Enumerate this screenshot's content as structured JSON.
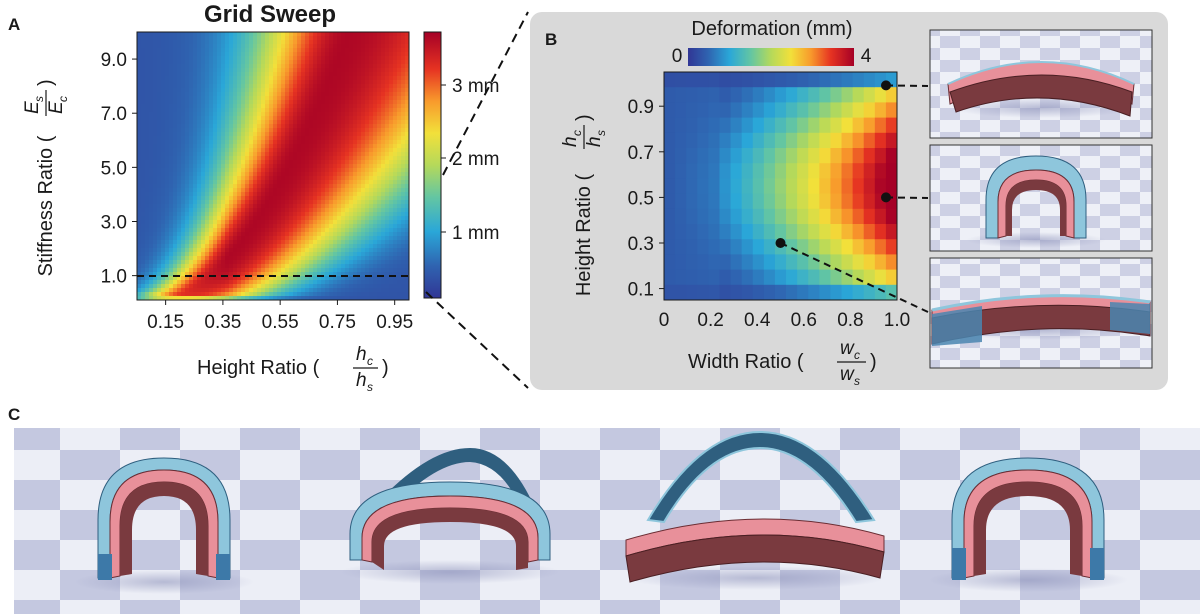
{
  "panels": {
    "a_label": "A",
    "b_label": "B",
    "c_label": "C"
  },
  "panel_a": {
    "title": "Grid Sweep",
    "ylabel_text": "Stiffness Ratio (",
    "ylabel_frac_num": "E",
    "ylabel_frac_num_sub": "s",
    "ylabel_frac_den": "E",
    "ylabel_frac_den_sub": "c",
    "ylabel_close": ")",
    "xlabel_text": "Height Ratio (",
    "xlabel_frac_num": "h",
    "xlabel_frac_num_sub": "c",
    "xlabel_frac_den": "h",
    "xlabel_frac_den_sub": "s",
    "xlabel_close": ")",
    "colorbar_ticks": [
      "1 mm",
      "2 mm",
      "3 mm"
    ],
    "colors": {
      "low": "#313695",
      "high": "#a50026"
    }
  },
  "panel_b": {
    "colorbar_title": "Deformation (mm)",
    "colorbar_min": "0",
    "colorbar_max": "4",
    "ylabel_text": "Height Ratio (",
    "ylabel_frac_num": "h",
    "ylabel_frac_num_sub": "c",
    "ylabel_frac_den": "h",
    "ylabel_frac_den_sub": "s",
    "ylabel_close": ")",
    "xlabel_text": "Width Ratio (",
    "xlabel_frac_num": "w",
    "xlabel_frac_num_sub": "c",
    "xlabel_frac_den": "w",
    "xlabel_frac_den_sub": "s",
    "xlabel_close": ")"
  },
  "colors": {
    "arch_outer": "#8ec6dc",
    "arch_inner": "#e8909a",
    "arch_body": "#7a3a3f",
    "arch_dark": "#2f5f7f",
    "checker_light": "#eceef6",
    "checker_dark": "#b8bcd8"
  },
  "chart_data": [
    {
      "type": "heatmap",
      "title": "Grid Sweep",
      "xlabel": "Height Ratio (hc/hs)",
      "ylabel": "Stiffness Ratio (Es/Ec)",
      "x_ticks": [
        "0.15",
        "0.35",
        "0.55",
        "0.75",
        "0.95"
      ],
      "y_ticks": [
        "1.0",
        "3.0",
        "5.0",
        "7.0",
        "9.0"
      ],
      "xlim": [
        0.05,
        1.0
      ],
      "ylim": [
        0.1,
        10.0
      ],
      "colorbar_range_mm": [
        0,
        3.6
      ],
      "reference_line_y": 1.0,
      "description_of_field": "deformation peaks (~3.5 mm) along a ridge from low height ratio at low stiffness to high height ratio at high stiffness"
    },
    {
      "type": "heatmap",
      "xlabel": "Width Ratio (wc/ws)",
      "ylabel": "Height Ratio (hc/hs)",
      "x_ticks": [
        "0",
        "0.2",
        "0.4",
        "0.6",
        "0.8",
        "1.0"
      ],
      "y_ticks": [
        "0.1",
        "0.3",
        "0.5",
        "0.7",
        "0.9"
      ],
      "xlim": [
        0,
        1.0
      ],
      "ylim": [
        0.05,
        1.05
      ],
      "colorbar_range_mm": [
        0,
        4
      ],
      "x": [
        0,
        0.05,
        0.1,
        0.15,
        0.2,
        0.25,
        0.3,
        0.35,
        0.4,
        0.45,
        0.5,
        0.55,
        0.6,
        0.65,
        0.7,
        0.75,
        0.8,
        0.85,
        0.9,
        0.95,
        1.0
      ],
      "y": [
        0.1,
        0.2,
        0.3,
        0.4,
        0.5,
        0.6,
        0.7,
        0.8,
        0.9,
        1.0
      ],
      "z_description": "values in mm; max ~4 near width 0.9-1.0, height 0.5",
      "markers": [
        {
          "x": 1.0,
          "y": 1.0
        },
        {
          "x": 1.0,
          "y": 0.5
        },
        {
          "x": 0.5,
          "y": 0.3
        }
      ]
    }
  ]
}
